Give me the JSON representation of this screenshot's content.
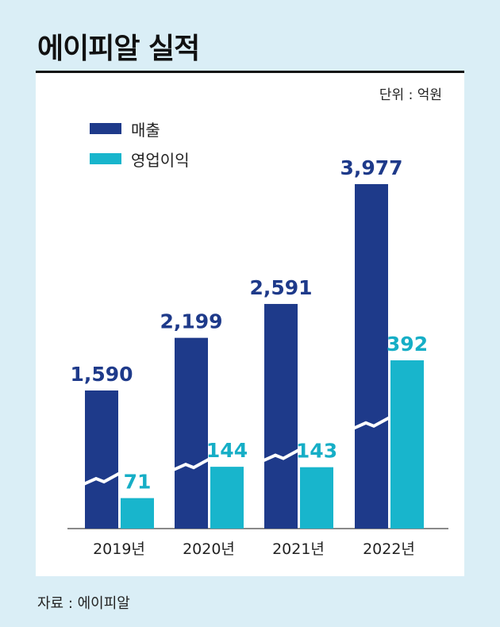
{
  "header": {
    "title": "에이피알 실적"
  },
  "unit_label": "단위 : 억원",
  "source": "자료 : 에이피알",
  "colors": {
    "revenue": "#1e3a8a",
    "operating_profit": "#18b5cc",
    "label_revenue": "#1e3a8a",
    "label_profit": "#16aec6"
  },
  "chart_data": {
    "type": "bar",
    "title": "에이피알 실적",
    "categories": [
      "2019년",
      "2020년",
      "2021년",
      "2022년"
    ],
    "series": [
      {
        "name": "매출",
        "values": [
          1590,
          2199,
          2591,
          3977
        ],
        "labels": [
          "1,590",
          "2,199",
          "2,591",
          "3,977"
        ]
      },
      {
        "name": "영업이익",
        "values": [
          71,
          144,
          143,
          392
        ],
        "labels": [
          "71",
          "144",
          "143",
          "392"
        ]
      }
    ],
    "axis_break": true,
    "unit": "억원",
    "legend_position": "top-left",
    "grid": false
  }
}
